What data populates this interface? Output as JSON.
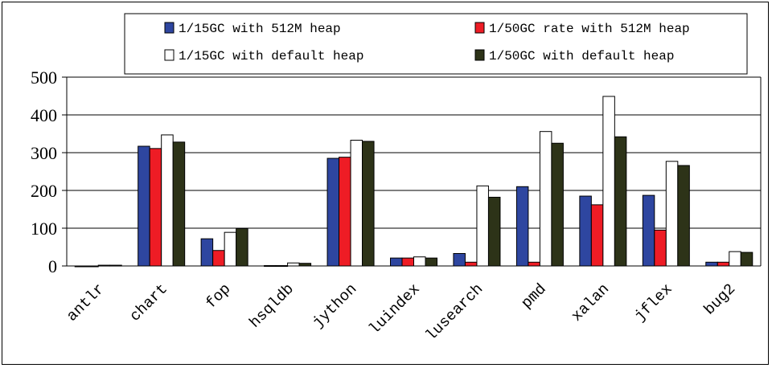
{
  "chart_data": {
    "type": "bar",
    "categories": [
      "antlr",
      "chart",
      "fop",
      "hsqldb",
      "jython",
      "luindex",
      "lusearch",
      "pmd",
      "xalan",
      "jflex",
      "bug2"
    ],
    "series": [
      {
        "name": "1/15GC with 512M heap",
        "color": "#2e46a0",
        "values": [
          0,
          317,
          72,
          1,
          285,
          21,
          33,
          210,
          185,
          187,
          10
        ]
      },
      {
        "name": "1/50GC rate with 512M heap",
        "color": "#ee1c25",
        "values": [
          0,
          311,
          41,
          1,
          288,
          21,
          10,
          10,
          162,
          95,
          10
        ]
      },
      {
        "name": "1/15GC with default heap",
        "color": "#ffffff",
        "values": [
          2,
          347,
          89,
          8,
          333,
          24,
          212,
          356,
          449,
          277,
          38
        ]
      },
      {
        "name": "1/50GC with default heap",
        "color": "#2d3318",
        "values": [
          2,
          328,
          99,
          7,
          330,
          21,
          182,
          325,
          342,
          266,
          36
        ]
      }
    ],
    "yticks": [
      0,
      100,
      200,
      300,
      400,
      500
    ],
    "ylim": [
      0,
      500
    ],
    "grid": true,
    "legend_position": "top"
  }
}
